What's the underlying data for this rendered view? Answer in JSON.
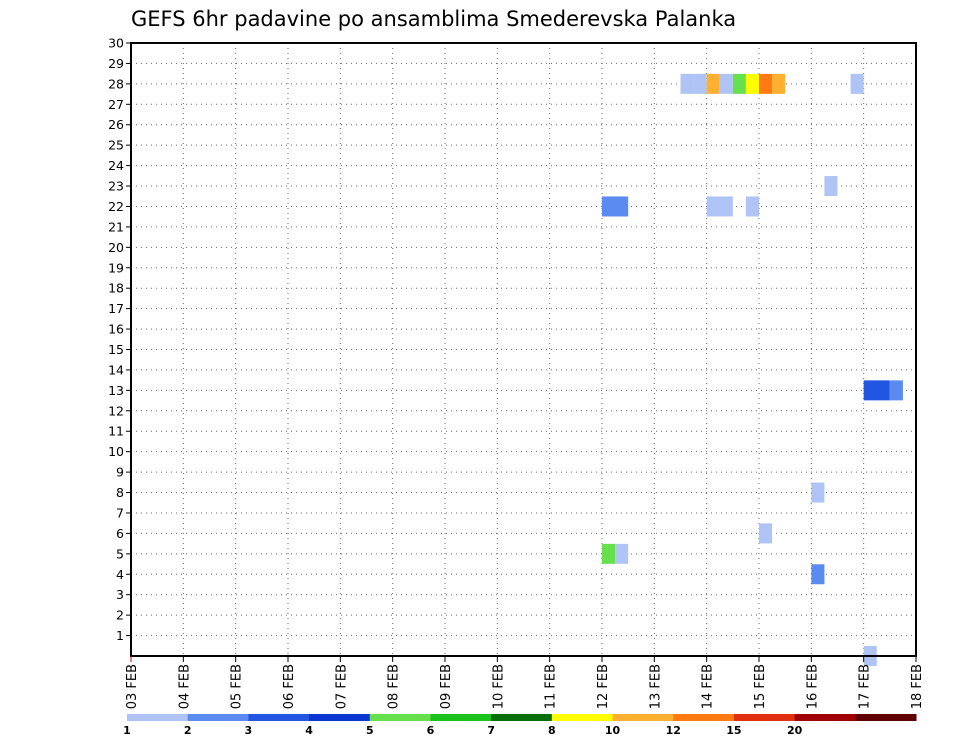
{
  "chart_data": {
    "type": "heatmap",
    "title": "GEFS 6hr padavine po ansamblima Smederevska Palanka",
    "y_ticks": [
      1,
      2,
      3,
      4,
      5,
      6,
      7,
      8,
      9,
      10,
      11,
      12,
      13,
      14,
      15,
      16,
      17,
      18,
      19,
      20,
      21,
      22,
      23,
      24,
      25,
      26,
      27,
      28,
      29,
      30
    ],
    "ylim": [
      0,
      30
    ],
    "x_ticks": [
      "03 FEB",
      "04 FEB",
      "05 FEB",
      "06 FEB",
      "07 FEB",
      "08 FEB",
      "09 FEB",
      "10 FEB",
      "11 FEB",
      "12 FEB",
      "13 FEB",
      "14 FEB",
      "15 FEB",
      "16 FEB",
      "17 FEB",
      "18 FEB"
    ],
    "xlim_days": [
      3,
      18
    ],
    "grid": true,
    "legend": {
      "placement": "bottom",
      "labels": [
        "1",
        "2",
        "3",
        "4",
        "5",
        "6",
        "7",
        "8",
        "10",
        "12",
        "15",
        "20"
      ],
      "colors": [
        "#afc4f4",
        "#5b8af0",
        "#2255e0",
        "#0b36d0",
        "#66e04c",
        "#1cc21c",
        "#0a6e0a",
        "#ffff00",
        "#ffb030",
        "#ff7a10",
        "#e03010",
        "#a00000",
        "#600000"
      ]
    },
    "cells": [
      {
        "member": 28,
        "day": 13.5,
        "hours": 6,
        "color": "#afc4f4"
      },
      {
        "member": 28,
        "day": 13.75,
        "hours": 6,
        "color": "#afc4f4"
      },
      {
        "member": 28,
        "day": 14.0,
        "hours": 6,
        "color": "#ffb030"
      },
      {
        "member": 28,
        "day": 14.25,
        "hours": 6,
        "color": "#afc4f4"
      },
      {
        "member": 28,
        "day": 14.5,
        "hours": 6,
        "color": "#66e04c"
      },
      {
        "member": 28,
        "day": 14.75,
        "hours": 6,
        "color": "#ffff00"
      },
      {
        "member": 28,
        "day": 15.0,
        "hours": 6,
        "color": "#ff7a10"
      },
      {
        "member": 28,
        "day": 15.25,
        "hours": 6,
        "color": "#ffb030"
      },
      {
        "member": 28,
        "day": 16.75,
        "hours": 6,
        "color": "#afc4f4"
      },
      {
        "member": 23,
        "day": 16.25,
        "hours": 6,
        "color": "#afc4f4"
      },
      {
        "member": 22,
        "day": 12.0,
        "hours": 12,
        "color": "#5b8af0"
      },
      {
        "member": 22,
        "day": 14.0,
        "hours": 12,
        "color": "#afc4f4"
      },
      {
        "member": 22,
        "day": 14.75,
        "hours": 6,
        "color": "#afc4f4"
      },
      {
        "member": 13,
        "day": 17.0,
        "hours": 12,
        "color": "#2255e0"
      },
      {
        "member": 13,
        "day": 17.5,
        "hours": 6,
        "color": "#5b8af0"
      },
      {
        "member": 8,
        "day": 16.0,
        "hours": 6,
        "color": "#afc4f4"
      },
      {
        "member": 6,
        "day": 15.0,
        "hours": 6,
        "color": "#afc4f4"
      },
      {
        "member": 5,
        "day": 12.0,
        "hours": 6,
        "color": "#66e04c"
      },
      {
        "member": 5,
        "day": 12.25,
        "hours": 6,
        "color": "#afc4f4"
      },
      {
        "member": 4,
        "day": 16.0,
        "hours": 6,
        "color": "#5b8af0"
      },
      {
        "member": 0,
        "day": 17.0,
        "hours": 6,
        "color": "#afc4f4"
      }
    ]
  }
}
